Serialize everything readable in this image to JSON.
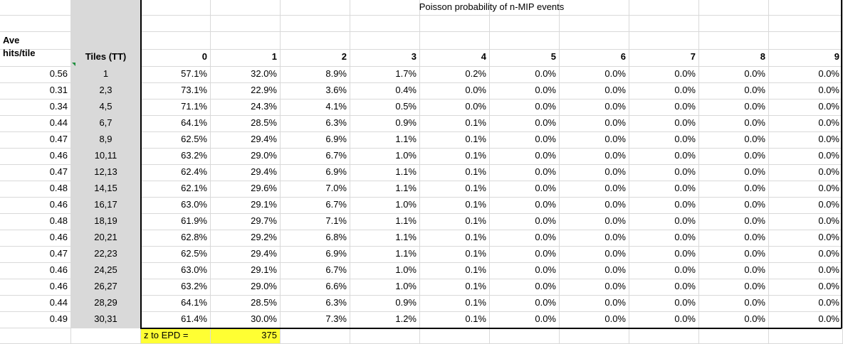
{
  "sheet": {
    "title": "Poisson probability of n-MIP events",
    "headers": {
      "ave_line1": "Ave",
      "ave_line2": "hits/tile",
      "tiles": "Tiles (TT)",
      "n_values": [
        "0",
        "1",
        "2",
        "3",
        "4",
        "5",
        "6",
        "7",
        "8",
        "9"
      ]
    },
    "rows": [
      {
        "ave": "0.56",
        "tiles": "1",
        "probs": [
          "57.1%",
          "32.0%",
          "8.9%",
          "1.7%",
          "0.2%",
          "0.0%",
          "0.0%",
          "0.0%",
          "0.0%",
          "0.0%"
        ]
      },
      {
        "ave": "0.31",
        "tiles": "2,3",
        "probs": [
          "73.1%",
          "22.9%",
          "3.6%",
          "0.4%",
          "0.0%",
          "0.0%",
          "0.0%",
          "0.0%",
          "0.0%",
          "0.0%"
        ]
      },
      {
        "ave": "0.34",
        "tiles": "4,5",
        "probs": [
          "71.1%",
          "24.3%",
          "4.1%",
          "0.5%",
          "0.0%",
          "0.0%",
          "0.0%",
          "0.0%",
          "0.0%",
          "0.0%"
        ]
      },
      {
        "ave": "0.44",
        "tiles": "6,7",
        "probs": [
          "64.1%",
          "28.5%",
          "6.3%",
          "0.9%",
          "0.1%",
          "0.0%",
          "0.0%",
          "0.0%",
          "0.0%",
          "0.0%"
        ]
      },
      {
        "ave": "0.47",
        "tiles": "8,9",
        "probs": [
          "62.5%",
          "29.4%",
          "6.9%",
          "1.1%",
          "0.1%",
          "0.0%",
          "0.0%",
          "0.0%",
          "0.0%",
          "0.0%"
        ]
      },
      {
        "ave": "0.46",
        "tiles": "10,11",
        "probs": [
          "63.2%",
          "29.0%",
          "6.7%",
          "1.0%",
          "0.1%",
          "0.0%",
          "0.0%",
          "0.0%",
          "0.0%",
          "0.0%"
        ]
      },
      {
        "ave": "0.47",
        "tiles": "12,13",
        "probs": [
          "62.4%",
          "29.4%",
          "6.9%",
          "1.1%",
          "0.1%",
          "0.0%",
          "0.0%",
          "0.0%",
          "0.0%",
          "0.0%"
        ]
      },
      {
        "ave": "0.48",
        "tiles": "14,15",
        "probs": [
          "62.1%",
          "29.6%",
          "7.0%",
          "1.1%",
          "0.1%",
          "0.0%",
          "0.0%",
          "0.0%",
          "0.0%",
          "0.0%"
        ]
      },
      {
        "ave": "0.46",
        "tiles": "16,17",
        "probs": [
          "63.0%",
          "29.1%",
          "6.7%",
          "1.0%",
          "0.1%",
          "0.0%",
          "0.0%",
          "0.0%",
          "0.0%",
          "0.0%"
        ]
      },
      {
        "ave": "0.48",
        "tiles": "18,19",
        "probs": [
          "61.9%",
          "29.7%",
          "7.1%",
          "1.1%",
          "0.1%",
          "0.0%",
          "0.0%",
          "0.0%",
          "0.0%",
          "0.0%"
        ]
      },
      {
        "ave": "0.46",
        "tiles": "20,21",
        "probs": [
          "62.8%",
          "29.2%",
          "6.8%",
          "1.1%",
          "0.1%",
          "0.0%",
          "0.0%",
          "0.0%",
          "0.0%",
          "0.0%"
        ]
      },
      {
        "ave": "0.47",
        "tiles": "22,23",
        "probs": [
          "62.5%",
          "29.4%",
          "6.9%",
          "1.1%",
          "0.1%",
          "0.0%",
          "0.0%",
          "0.0%",
          "0.0%",
          "0.0%"
        ]
      },
      {
        "ave": "0.46",
        "tiles": "24,25",
        "probs": [
          "63.0%",
          "29.1%",
          "6.7%",
          "1.0%",
          "0.1%",
          "0.0%",
          "0.0%",
          "0.0%",
          "0.0%",
          "0.0%"
        ]
      },
      {
        "ave": "0.46",
        "tiles": "26,27",
        "probs": [
          "63.2%",
          "29.0%",
          "6.6%",
          "1.0%",
          "0.1%",
          "0.0%",
          "0.0%",
          "0.0%",
          "0.0%",
          "0.0%"
        ]
      },
      {
        "ave": "0.44",
        "tiles": "28,29",
        "probs": [
          "64.1%",
          "28.5%",
          "6.3%",
          "0.9%",
          "0.1%",
          "0.0%",
          "0.0%",
          "0.0%",
          "0.0%",
          "0.0%"
        ]
      },
      {
        "ave": "0.49",
        "tiles": "30,31",
        "probs": [
          "61.4%",
          "30.0%",
          "7.3%",
          "1.2%",
          "0.1%",
          "0.0%",
          "0.0%",
          "0.0%",
          "0.0%",
          "0.0%"
        ]
      }
    ],
    "footer": {
      "z_label": "z to EPD =",
      "z_value": "375"
    },
    "colors": {
      "tiles_fill": "#d9d9d9",
      "z_fill": "#ffff33",
      "gridline": "#d9d9d9",
      "box_border": "#000000",
      "comment_marker": "#1e8f3e"
    }
  }
}
